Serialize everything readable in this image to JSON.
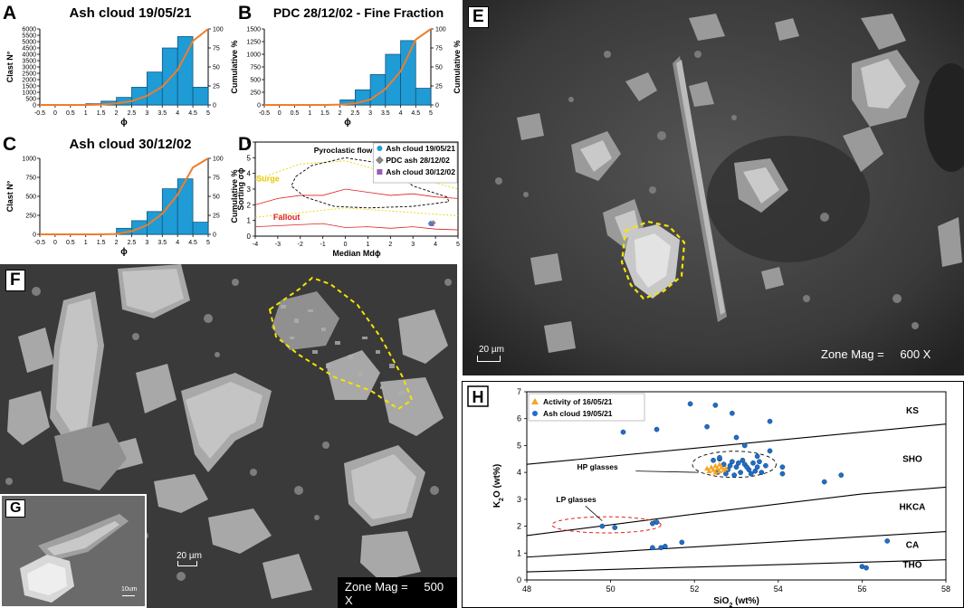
{
  "panels": {
    "A": {
      "letter": "A",
      "title": "Ash cloud 19/05/21"
    },
    "B": {
      "letter": "B",
      "title": "PDC 28/12/02 - Fine Fraction"
    },
    "C": {
      "letter": "C",
      "title": "Ash cloud 30/12/02"
    },
    "D": {
      "letter": "D"
    },
    "E": {
      "letter": "E",
      "scale_label": "20 µm",
      "mag_label": "Zone Mag =",
      "mag_value": "600 X"
    },
    "F": {
      "letter": "F",
      "scale_label": "20 µm",
      "mag_label": "Zone Mag =",
      "mag_value": "500 X"
    },
    "G": {
      "letter": "G",
      "scale_label": "10um"
    },
    "H": {
      "letter": "H"
    }
  },
  "colors": {
    "bar": "#1f9bd6",
    "cumulative": "#f07d2b",
    "glass_orange": "#f5a623",
    "glass_blue": "#1f6fc9",
    "outline_yellow": "#f5e400",
    "lp_red": "#e02020"
  },
  "chart_data": [
    {
      "type": "bar",
      "title": "Ash cloud 19/05/21",
      "xlabel": "ϕ",
      "ylabel": "Clast N°",
      "y2label": "Cumulative %",
      "xticks": [
        "-0.5",
        "0",
        "0.5",
        "1",
        "1.5",
        "2",
        "2.5",
        "3",
        "3.5",
        "4",
        "4.5",
        "5"
      ],
      "yticks": [
        "0",
        "500",
        "1000",
        "1500",
        "2000",
        "2500",
        "3000",
        "3500",
        "4000",
        "4500",
        "5000",
        "5500",
        "6000"
      ],
      "y2ticks": [
        "0",
        "25",
        "50",
        "75",
        "100"
      ],
      "ylim": [
        0,
        6000
      ],
      "categories": [
        "1.5",
        "2",
        "2.5",
        "3",
        "3.5",
        "4",
        "4.5",
        "5"
      ],
      "values": [
        100,
        300,
        600,
        1400,
        2600,
        4500,
        5400,
        1400
      ],
      "cumulative": [
        0,
        0,
        0,
        0,
        0.5,
        2,
        5,
        12,
        24,
        46,
        84,
        100
      ]
    },
    {
      "type": "bar",
      "title": "PDC 28/12/02 - Fine Fraction",
      "xlabel": "ϕ",
      "ylabel": "Clast N°",
      "y2label": "Cumulative %",
      "xticks": [
        "-0.5",
        "0",
        "0.5",
        "1",
        "1.5",
        "2",
        "2.5",
        "3",
        "3.5",
        "4",
        "4.5",
        "5"
      ],
      "yticks": [
        "0",
        "250",
        "500",
        "750",
        "1000",
        "1250",
        "1500"
      ],
      "y2ticks": [
        "0",
        "25",
        "50",
        "75",
        "100"
      ],
      "ylim": [
        0,
        1500
      ],
      "categories": [
        "2.5",
        "3",
        "3.5",
        "4",
        "4.5",
        "5"
      ],
      "values": [
        100,
        300,
        600,
        1000,
        1270,
        330
      ],
      "cumulative": [
        0,
        0,
        0,
        0,
        0,
        0.5,
        2,
        7,
        21,
        44,
        86,
        100
      ]
    },
    {
      "type": "bar",
      "title": "Ash cloud 30/12/02",
      "xlabel": "ϕ",
      "ylabel": "Clast N°",
      "y2label": "Cumulative %",
      "xticks": [
        "-0.5",
        "0",
        "0.5",
        "1",
        "1.5",
        "2",
        "2.5",
        "3",
        "3.5",
        "4",
        "4.5",
        "5"
      ],
      "yticks": [
        "0",
        "250",
        "500",
        "750",
        "1000"
      ],
      "y2ticks": [
        "0",
        "25",
        "50",
        "75",
        "100"
      ],
      "ylim": [
        0,
        1000
      ],
      "categories": [
        "2.5",
        "3",
        "3.5",
        "4",
        "4.5",
        "5"
      ],
      "values": [
        80,
        180,
        300,
        600,
        730,
        160
      ],
      "cumulative": [
        0,
        0,
        0,
        0,
        0,
        0.5,
        4,
        12,
        27,
        52,
        88,
        100
      ]
    },
    {
      "type": "scatter",
      "xlabel": "Median Mdϕ",
      "ylabel": "Sorting σϕ",
      "xticks": [
        "-4",
        "-3",
        "-2",
        "-1",
        "0",
        "1",
        "2",
        "3",
        "4",
        "5"
      ],
      "yticks": [
        "0",
        "1",
        "2",
        "3",
        "4",
        "5",
        "6"
      ],
      "xlim": [
        -4,
        5
      ],
      "ylim": [
        0,
        6
      ],
      "annotations": {
        "pyroclastic": "Pyroclastic flow",
        "surge": "Surge",
        "fallout": "Fallout"
      },
      "series": [
        {
          "name": "Ash cloud 19/05/21",
          "points": [
            [
              3.8,
              0.8
            ]
          ],
          "color": "#1f9bd6",
          "marker": "circle"
        },
        {
          "name": "PDC ash 28/12/02",
          "points": [
            [
              3.9,
              0.85
            ]
          ],
          "color": "#8a8a8a",
          "marker": "diamond"
        },
        {
          "name": "Ash cloud 30/12/02",
          "points": [
            [
              3.85,
              0.75
            ]
          ],
          "color": "#9b59b6",
          "marker": "square"
        }
      ]
    },
    {
      "type": "scatter",
      "xlabel": "SiO2 (wt%)",
      "ylabel": "K2O (wt%)",
      "xticks": [
        "48",
        "50",
        "52",
        "54",
        "56",
        "58"
      ],
      "yticks": [
        "0",
        "1",
        "2",
        "3",
        "4",
        "5",
        "6",
        "7"
      ],
      "xlim": [
        48,
        58
      ],
      "ylim": [
        0,
        7
      ],
      "field_labels": [
        "KS",
        "SHO",
        "HKCA",
        "CA",
        "THO"
      ],
      "annotations": {
        "hp": "HP glasses",
        "lp": "LP glasses"
      },
      "series": [
        {
          "name": "Activity of 16/05/21",
          "color": "#f5a623",
          "marker": "triangle",
          "points": [
            [
              52.3,
              4.15
            ],
            [
              52.4,
              4.2
            ],
            [
              52.45,
              4.1
            ],
            [
              52.5,
              4.25
            ],
            [
              52.55,
              4.15
            ],
            [
              52.6,
              4.05
            ],
            [
              52.65,
              4.2
            ],
            [
              52.7,
              4.1
            ],
            [
              52.35,
              4.05
            ],
            [
              52.5,
              4.0
            ],
            [
              52.6,
              4.3
            ],
            [
              52.75,
              4.15
            ]
          ]
        },
        {
          "name": "Ash cloud 19/05/21",
          "color": "#1f6fc9",
          "marker": "circle",
          "points": [
            [
              50.3,
              5.5
            ],
            [
              51.1,
              5.6
            ],
            [
              51.9,
              6.55
            ],
            [
              52.5,
              6.5
            ],
            [
              52.9,
              6.2
            ],
            [
              53.8,
              5.9
            ],
            [
              52.3,
              5.7
            ],
            [
              53.0,
              5.3
            ],
            [
              53.2,
              5.0
            ],
            [
              53.8,
              4.8
            ],
            [
              54.1,
              4.2
            ],
            [
              54.1,
              3.95
            ],
            [
              55.1,
              3.65
            ],
            [
              55.5,
              3.9
            ],
            [
              52.45,
              4.45
            ],
            [
              52.6,
              4.5
            ],
            [
              52.7,
              4.3
            ],
            [
              52.8,
              4.1
            ],
            [
              52.9,
              4.4
            ],
            [
              53.0,
              4.2
            ],
            [
              53.1,
              4.0
            ],
            [
              53.2,
              4.3
            ],
            [
              53.3,
              4.1
            ],
            [
              53.4,
              4.35
            ],
            [
              53.5,
              4.2
            ],
            [
              53.6,
              4.0
            ],
            [
              53.7,
              4.25
            ],
            [
              52.85,
              4.25
            ],
            [
              53.05,
              4.35
            ],
            [
              53.25,
              4.2
            ],
            [
              53.45,
              4.05
            ],
            [
              52.75,
              3.95
            ],
            [
              52.95,
              3.9
            ],
            [
              53.15,
              4.45
            ],
            [
              53.35,
              3.95
            ],
            [
              53.55,
              4.4
            ],
            [
              49.8,
              2.0
            ],
            [
              50.1,
              1.95
            ],
            [
              51.0,
              2.1
            ],
            [
              51.1,
              2.15
            ],
            [
              51.0,
              1.2
            ],
            [
              51.2,
              1.2
            ],
            [
              51.3,
              1.25
            ],
            [
              51.7,
              1.4
            ],
            [
              56.0,
              0.5
            ],
            [
              56.1,
              0.45
            ],
            [
              56.6,
              1.45
            ],
            [
              52.6,
              4.55
            ],
            [
              53.5,
              4.6
            ],
            [
              52.55,
              4.0
            ]
          ]
        }
      ]
    }
  ]
}
